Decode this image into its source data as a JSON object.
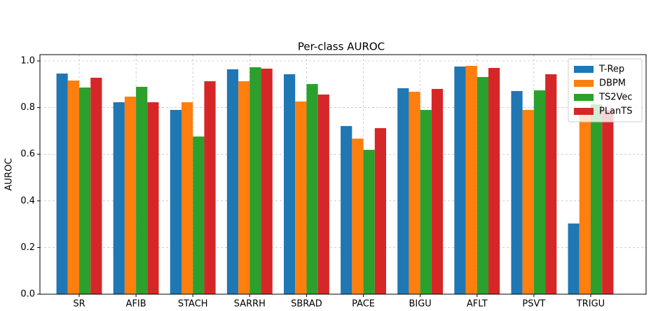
{
  "chart_data": {
    "type": "bar",
    "title": "Per-class AUROC",
    "y_label": "AUROC",
    "categories": [
      "SR",
      "AFIB",
      "STACH",
      "SARRH",
      "SBRAD",
      "PACE",
      "BIGU",
      "AFLT",
      "PSVT",
      "TRIGU"
    ],
    "series": [
      {
        "name": "T-Rep",
        "color": "#1f77b4",
        "values": [
          0.946,
          0.823,
          0.79,
          0.964,
          0.943,
          0.721,
          0.883,
          0.976,
          0.871,
          0.303
        ]
      },
      {
        "name": "DBPM",
        "color": "#ff7f0e",
        "values": [
          0.916,
          0.847,
          0.823,
          0.913,
          0.826,
          0.667,
          0.868,
          0.979,
          0.79,
          0.78
        ]
      },
      {
        "name": "TS2Vec",
        "color": "#2ca02c",
        "values": [
          0.886,
          0.889,
          0.676,
          0.973,
          0.901,
          0.619,
          0.79,
          0.931,
          0.874,
          0.814
        ]
      },
      {
        "name": "PLanTS",
        "color": "#d62728",
        "values": [
          0.928,
          0.823,
          0.913,
          0.967,
          0.856,
          0.712,
          0.88,
          0.97,
          0.943,
          0.79
        ]
      }
    ],
    "ylim": [
      0,
      1.027
    ],
    "yticks": [
      {
        "value": 0,
        "label": "0.0"
      },
      0.2,
      0.4,
      0.6,
      0.8,
      {
        "value": 1,
        "label": "1.0"
      }
    ],
    "grid": true,
    "legend": "upper right"
  }
}
